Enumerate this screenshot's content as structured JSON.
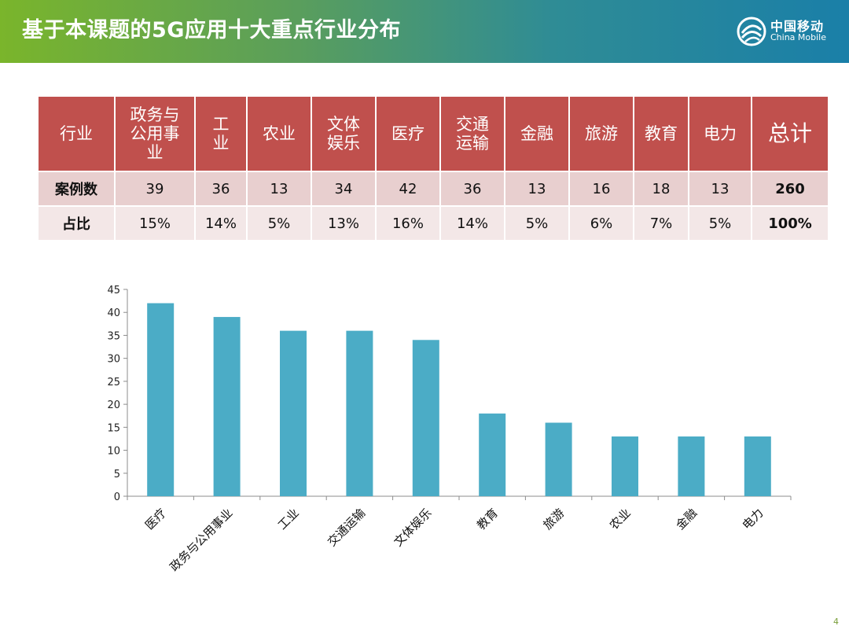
{
  "header": {
    "title": "基于本课题的5G应用十大重点行业分布",
    "logo_cn": "中国移动",
    "logo_en": "China Mobile",
    "gradient": [
      "#7ab52b",
      "#1a7fa8"
    ]
  },
  "table": {
    "header_label": "行业",
    "industries": [
      "政务与公用事业",
      "工业",
      "农业",
      "文体娱乐",
      "医疗",
      "交通运输",
      "金融",
      "旅游",
      "教育",
      "电力"
    ],
    "total_label": "总计",
    "count_label": "案例数",
    "counts": [
      "39",
      "36",
      "13",
      "34",
      "42",
      "36",
      "13",
      "16",
      "18",
      "13"
    ],
    "count_total": "260",
    "share_label": "占比",
    "shares": [
      "15%",
      "14%",
      "5%",
      "13%",
      "16%",
      "14%",
      "5%",
      "6%",
      "7%",
      "5%"
    ],
    "share_total": "100%",
    "header_color": "#c0504d"
  },
  "chart_data": {
    "type": "bar",
    "categories": [
      "医疗",
      "政务与公用事业",
      "工业",
      "交通运输",
      "文体娱乐",
      "教育",
      "旅游",
      "农业",
      "金融",
      "电力"
    ],
    "values": [
      42,
      39,
      36,
      36,
      34,
      18,
      16,
      13,
      13,
      13
    ],
    "ylim": [
      0,
      45
    ],
    "yticks": [
      0,
      5,
      10,
      15,
      20,
      25,
      30,
      35,
      40,
      45
    ],
    "bar_color": "#4bacc6",
    "grid": false,
    "legend": "none"
  },
  "page_number": "4"
}
